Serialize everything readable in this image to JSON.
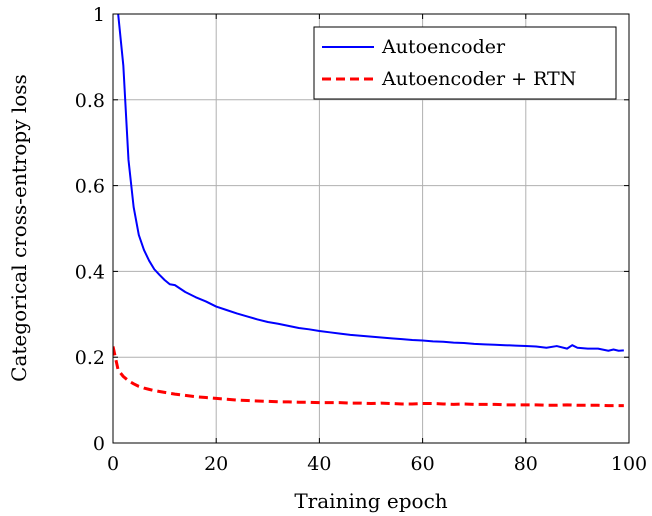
{
  "chart_data": {
    "type": "line",
    "title": "",
    "xlabel": "Training epoch",
    "ylabel": "Categorical cross-entropy loss",
    "xlim": [
      0,
      100
    ],
    "ylim": [
      0,
      1
    ],
    "xticks": [
      0,
      20,
      40,
      60,
      80,
      100
    ],
    "yticks": [
      0,
      0.2,
      0.4,
      0.6,
      0.8,
      1
    ],
    "xtick_labels": [
      "0",
      "20",
      "40",
      "60",
      "80",
      "100"
    ],
    "ytick_labels": [
      "0",
      "0.2",
      "0.4",
      "0.6",
      "0.8",
      "1"
    ],
    "grid": true,
    "legend_position": "top-right",
    "series": [
      {
        "name": "Autoencoder",
        "color": "#0000ff",
        "dash": "solid",
        "points": [
          [
            1,
            1.0
          ],
          [
            2,
            0.88
          ],
          [
            3,
            0.66
          ],
          [
            4,
            0.55
          ],
          [
            5,
            0.485
          ],
          [
            6,
            0.45
          ],
          [
            7,
            0.425
          ],
          [
            8,
            0.405
          ],
          [
            9,
            0.392
          ],
          [
            10,
            0.38
          ],
          [
            11,
            0.37
          ],
          [
            12,
            0.368
          ],
          [
            14,
            0.352
          ],
          [
            16,
            0.34
          ],
          [
            18,
            0.33
          ],
          [
            20,
            0.318
          ],
          [
            22,
            0.31
          ],
          [
            24,
            0.302
          ],
          [
            26,
            0.295
          ],
          [
            28,
            0.288
          ],
          [
            30,
            0.282
          ],
          [
            32,
            0.278
          ],
          [
            34,
            0.273
          ],
          [
            36,
            0.268
          ],
          [
            38,
            0.265
          ],
          [
            40,
            0.261
          ],
          [
            42,
            0.258
          ],
          [
            44,
            0.255
          ],
          [
            46,
            0.252
          ],
          [
            48,
            0.25
          ],
          [
            50,
            0.248
          ],
          [
            52,
            0.246
          ],
          [
            54,
            0.244
          ],
          [
            56,
            0.242
          ],
          [
            58,
            0.24
          ],
          [
            60,
            0.239
          ],
          [
            62,
            0.237
          ],
          [
            64,
            0.236
          ],
          [
            66,
            0.234
          ],
          [
            68,
            0.233
          ],
          [
            70,
            0.231
          ],
          [
            72,
            0.23
          ],
          [
            74,
            0.229
          ],
          [
            76,
            0.228
          ],
          [
            78,
            0.227
          ],
          [
            80,
            0.226
          ],
          [
            82,
            0.225
          ],
          [
            84,
            0.222
          ],
          [
            86,
            0.226
          ],
          [
            88,
            0.22
          ],
          [
            89,
            0.228
          ],
          [
            90,
            0.222
          ],
          [
            92,
            0.22
          ],
          [
            94,
            0.22
          ],
          [
            96,
            0.215
          ],
          [
            97,
            0.218
          ],
          [
            98,
            0.215
          ],
          [
            99,
            0.216
          ]
        ]
      },
      {
        "name": "Autoencoder + RTN",
        "color": "#ff0000",
        "dash": "dashed",
        "points": [
          [
            0,
            0.225
          ],
          [
            1,
            0.17
          ],
          [
            2,
            0.155
          ],
          [
            3,
            0.145
          ],
          [
            4,
            0.138
          ],
          [
            5,
            0.132
          ],
          [
            6,
            0.128
          ],
          [
            7,
            0.125
          ],
          [
            8,
            0.122
          ],
          [
            10,
            0.118
          ],
          [
            12,
            0.114
          ],
          [
            14,
            0.111
          ],
          [
            16,
            0.108
          ],
          [
            18,
            0.106
          ],
          [
            20,
            0.104
          ],
          [
            22,
            0.102
          ],
          [
            24,
            0.1
          ],
          [
            26,
            0.099
          ],
          [
            28,
            0.098
          ],
          [
            30,
            0.097
          ],
          [
            32,
            0.096
          ],
          [
            34,
            0.096
          ],
          [
            36,
            0.095
          ],
          [
            38,
            0.095
          ],
          [
            40,
            0.094
          ],
          [
            42,
            0.094
          ],
          [
            44,
            0.094
          ],
          [
            46,
            0.093
          ],
          [
            48,
            0.093
          ],
          [
            50,
            0.092
          ],
          [
            52,
            0.093
          ],
          [
            54,
            0.092
          ],
          [
            56,
            0.091
          ],
          [
            58,
            0.091
          ],
          [
            60,
            0.092
          ],
          [
            62,
            0.092
          ],
          [
            64,
            0.091
          ],
          [
            66,
            0.09
          ],
          [
            68,
            0.091
          ],
          [
            70,
            0.09
          ],
          [
            72,
            0.09
          ],
          [
            74,
            0.09
          ],
          [
            76,
            0.089
          ],
          [
            78,
            0.089
          ],
          [
            80,
            0.089
          ],
          [
            82,
            0.089
          ],
          [
            84,
            0.088
          ],
          [
            86,
            0.088
          ],
          [
            88,
            0.089
          ],
          [
            90,
            0.088
          ],
          [
            92,
            0.088
          ],
          [
            94,
            0.088
          ],
          [
            96,
            0.087
          ],
          [
            98,
            0.087
          ],
          [
            99,
            0.087
          ]
        ]
      }
    ]
  }
}
